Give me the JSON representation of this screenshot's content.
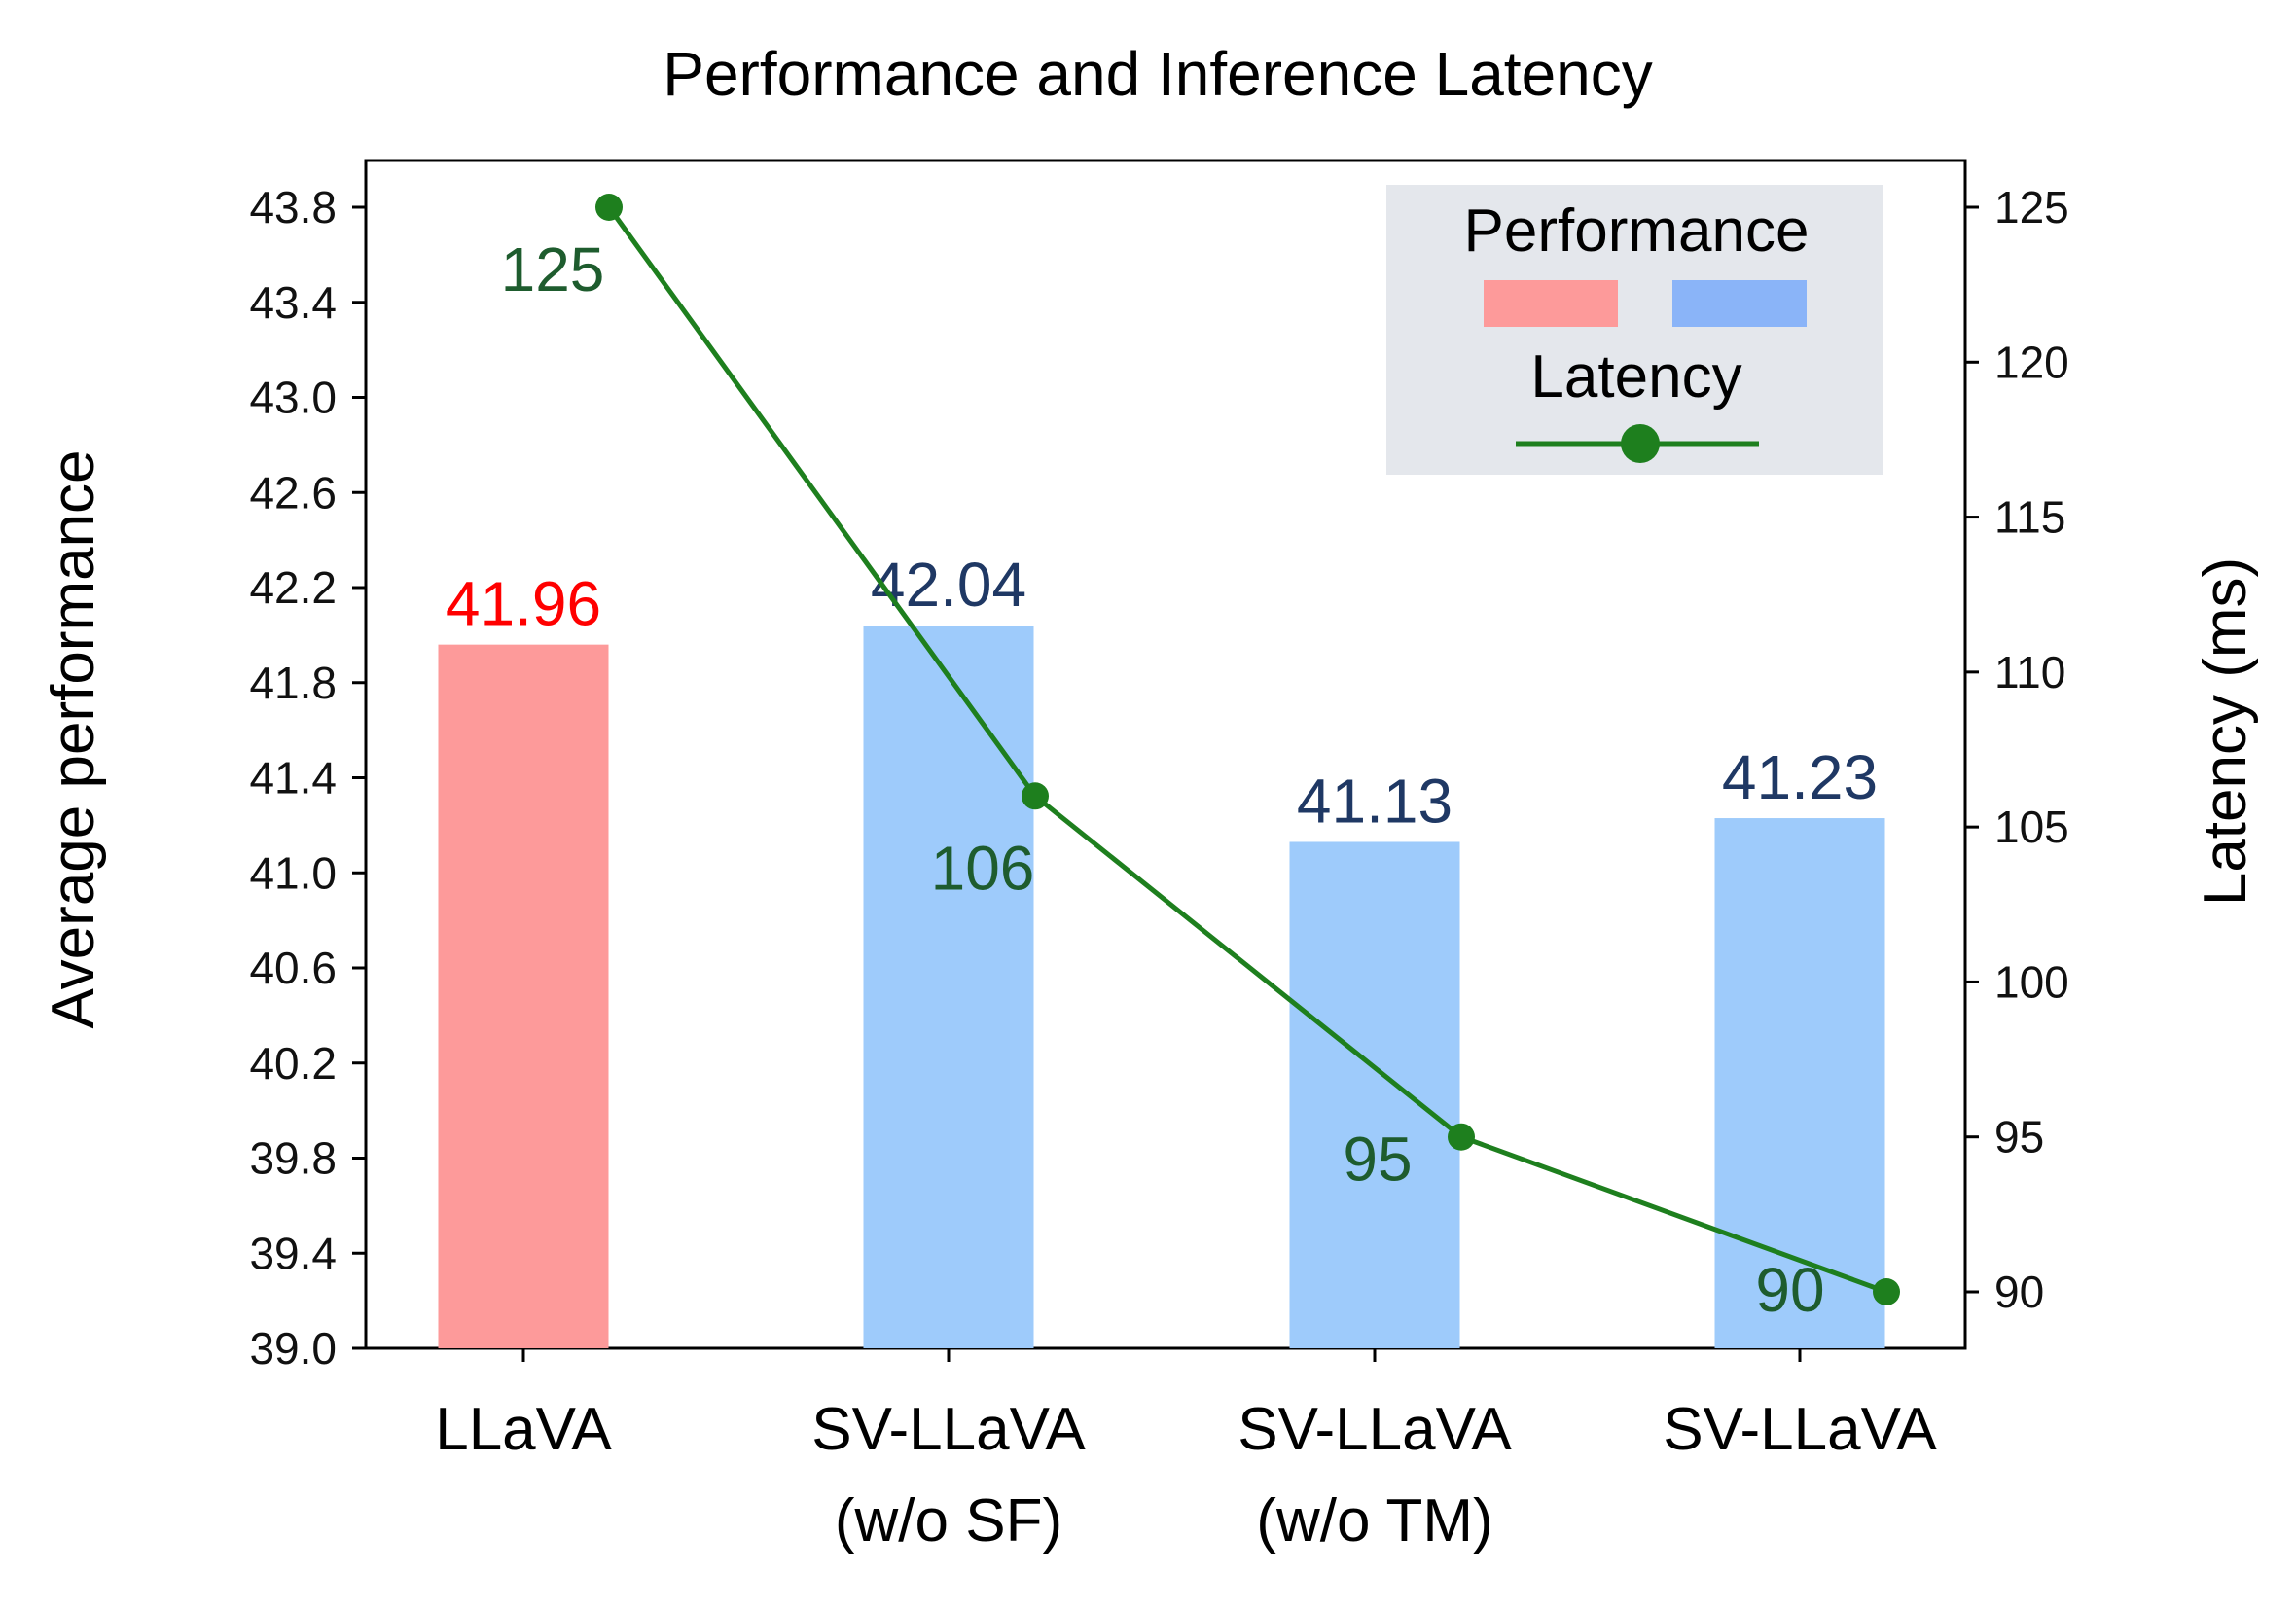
{
  "chart_data": {
    "type": "bar",
    "title": "Performance and Inference Latency",
    "categories": [
      [
        "LLaVA"
      ],
      [
        "SV-LLaVA",
        "(w/o SF)"
      ],
      [
        "SV-LLaVA",
        "(w/o TM)"
      ],
      [
        "SV-LLaVA"
      ]
    ],
    "ylabel": "Average performance",
    "y2label": "Latency (ms)",
    "ylim": [
      39.0,
      43.8
    ],
    "yticks": [
      "39.0",
      "39.4",
      "39.8",
      "40.2",
      "40.6",
      "41.0",
      "41.4",
      "41.8",
      "42.2",
      "42.6",
      "43.0",
      "43.4",
      "43.8"
    ],
    "y2lim": [
      88,
      126
    ],
    "y2ticks": [
      "90",
      "95",
      "100",
      "105",
      "110",
      "115",
      "120",
      "125"
    ],
    "grid": false,
    "legend_position": "top-right",
    "series": [
      {
        "name": "Performance",
        "kind": "bar",
        "values": [
          41.96,
          42.04,
          41.13,
          41.23
        ],
        "labels": [
          "41.96",
          "42.04",
          "41.13",
          "41.23"
        ],
        "bar_colors": [
          "#fd9a9a",
          "#9ecbfb",
          "#9ecbfb",
          "#9ecbfb"
        ],
        "label_colors": [
          "#ff0000",
          "#1f3864",
          "#1f3864",
          "#1f3864"
        ]
      },
      {
        "name": "Latency",
        "kind": "line",
        "axis": "right",
        "values": [
          125,
          106,
          95,
          90
        ],
        "labels": [
          "125",
          "106",
          "95",
          "90"
        ],
        "color": "#1e7f1e",
        "label_color": "#1e5c2e"
      }
    ],
    "legend": {
      "performance_swatches": [
        "#fd9a9a",
        "#8ab4f8"
      ],
      "background": "#e4e7ec"
    }
  }
}
